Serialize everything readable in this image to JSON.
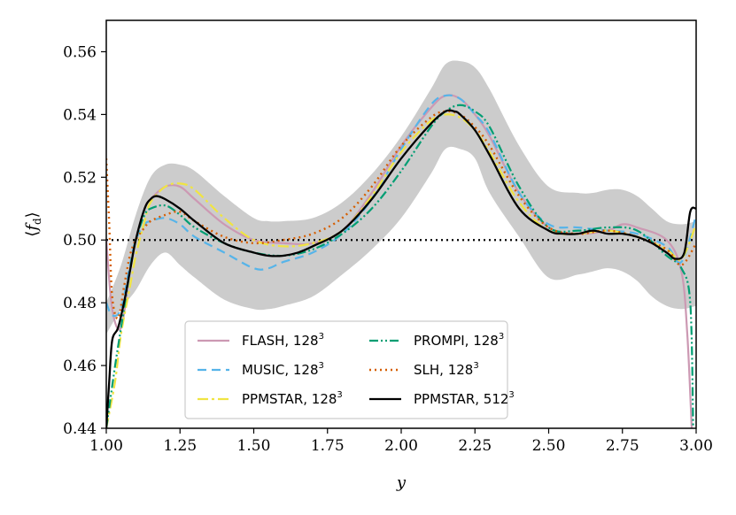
{
  "chart_data": {
    "type": "line",
    "xlabel": "y",
    "ylabel": "⟨f_d⟩",
    "ylabel_main": "⟨f",
    "ylabel_sub": "d",
    "ylabel_close": "⟩",
    "xlim": [
      1.0,
      3.0
    ],
    "ylim": [
      0.44,
      0.57
    ],
    "xticks": [
      1.0,
      1.25,
      1.5,
      1.75,
      2.0,
      2.25,
      2.5,
      2.75,
      3.0
    ],
    "xtick_labels": [
      "1.00",
      "1.25",
      "1.50",
      "1.75",
      "2.00",
      "2.25",
      "2.50",
      "2.75",
      "3.00"
    ],
    "yticks": [
      0.44,
      0.46,
      0.48,
      0.5,
      0.52,
      0.54,
      0.56
    ],
    "ytick_labels": [
      "0.44",
      "0.46",
      "0.48",
      "0.50",
      "0.52",
      "0.54",
      "0.56"
    ],
    "reference_line": {
      "y": 0.5,
      "style": "dotted",
      "color": "#000000"
    },
    "band": {
      "name": "spread",
      "color": "#cccccc",
      "x": [
        1.0,
        1.05,
        1.1,
        1.15,
        1.2,
        1.25,
        1.3,
        1.4,
        1.5,
        1.55,
        1.6,
        1.7,
        1.8,
        1.9,
        2.0,
        2.1,
        2.15,
        2.2,
        2.25,
        2.3,
        2.4,
        2.5,
        2.6,
        2.65,
        2.7,
        2.75,
        2.8,
        2.85,
        2.9,
        2.95,
        3.0
      ],
      "upper": [
        0.48,
        0.492,
        0.508,
        0.52,
        0.524,
        0.524,
        0.522,
        0.514,
        0.507,
        0.506,
        0.506,
        0.507,
        0.512,
        0.521,
        0.533,
        0.548,
        0.556,
        0.557,
        0.555,
        0.548,
        0.53,
        0.517,
        0.515,
        0.515,
        0.516,
        0.516,
        0.514,
        0.51,
        0.506,
        0.505,
        0.506
      ],
      "lower": [
        0.47,
        0.478,
        0.484,
        0.492,
        0.496,
        0.492,
        0.488,
        0.481,
        0.478,
        0.478,
        0.479,
        0.482,
        0.489,
        0.497,
        0.507,
        0.521,
        0.529,
        0.529,
        0.526,
        0.515,
        0.501,
        0.488,
        0.489,
        0.49,
        0.491,
        0.49,
        0.487,
        0.482,
        0.479,
        0.478,
        0.479
      ]
    },
    "series": [
      {
        "name": "FLASH",
        "res": "128",
        "color": "#cc99b3",
        "dash": "",
        "width": 2.2,
        "x": [
          1.0,
          1.02,
          1.05,
          1.08,
          1.1,
          1.13,
          1.15,
          1.2,
          1.25,
          1.3,
          1.4,
          1.5,
          1.6,
          1.7,
          1.8,
          1.9,
          2.0,
          2.1,
          2.15,
          2.2,
          2.25,
          2.3,
          2.4,
          2.5,
          2.6,
          2.7,
          2.75,
          2.8,
          2.9,
          2.95,
          2.97,
          2.985
        ],
        "y": [
          0.5,
          0.478,
          0.472,
          0.49,
          0.5,
          0.51,
          0.513,
          0.517,
          0.517,
          0.513,
          0.505,
          0.5,
          0.499,
          0.499,
          0.503,
          0.515,
          0.53,
          0.542,
          0.546,
          0.545,
          0.54,
          0.533,
          0.515,
          0.504,
          0.502,
          0.503,
          0.505,
          0.504,
          0.5,
          0.49,
          0.47,
          0.44
        ]
      },
      {
        "name": "MUSIC",
        "res": "128",
        "color": "#56b4e9",
        "dash": "10,6",
        "width": 2.2,
        "x": [
          1.0,
          1.02,
          1.05,
          1.08,
          1.1,
          1.13,
          1.15,
          1.2,
          1.25,
          1.3,
          1.4,
          1.5,
          1.55,
          1.6,
          1.7,
          1.8,
          1.9,
          2.0,
          2.1,
          2.15,
          2.2,
          2.25,
          2.3,
          2.4,
          2.5,
          2.6,
          2.7,
          2.8,
          2.9,
          2.95,
          3.0
        ],
        "y": [
          0.48,
          0.476,
          0.478,
          0.492,
          0.5,
          0.505,
          0.506,
          0.507,
          0.505,
          0.501,
          0.496,
          0.491,
          0.491,
          0.493,
          0.496,
          0.502,
          0.513,
          0.529,
          0.543,
          0.546,
          0.545,
          0.54,
          0.534,
          0.515,
          0.505,
          0.504,
          0.503,
          0.502,
          0.498,
          0.493,
          0.508
        ]
      },
      {
        "name": "PPMSTAR",
        "res": "128",
        "color": "#f0e442",
        "dash": "12,4,3,4",
        "width": 2.2,
        "x": [
          1.0,
          1.03,
          1.05,
          1.08,
          1.1,
          1.13,
          1.15,
          1.2,
          1.25,
          1.3,
          1.4,
          1.5,
          1.6,
          1.7,
          1.8,
          1.9,
          2.0,
          2.1,
          2.15,
          2.2,
          2.25,
          2.3,
          2.4,
          2.5,
          2.6,
          2.7,
          2.8,
          2.9,
          2.95,
          3.0
        ],
        "y": [
          0.44,
          0.455,
          0.47,
          0.485,
          0.495,
          0.506,
          0.512,
          0.517,
          0.518,
          0.516,
          0.507,
          0.5,
          0.498,
          0.499,
          0.503,
          0.514,
          0.528,
          0.538,
          0.54,
          0.539,
          0.535,
          0.528,
          0.512,
          0.503,
          0.502,
          0.503,
          0.501,
          0.497,
          0.494,
          0.505
        ]
      },
      {
        "name": "PROMPI",
        "res": "128",
        "color": "#009e73",
        "dash": "10,3,2,3,2,3",
        "width": 2.2,
        "x": [
          1.0,
          1.03,
          1.05,
          1.08,
          1.1,
          1.13,
          1.15,
          1.2,
          1.25,
          1.3,
          1.4,
          1.5,
          1.6,
          1.7,
          1.8,
          1.9,
          2.0,
          2.1,
          2.15,
          2.2,
          2.25,
          2.3,
          2.4,
          2.5,
          2.6,
          2.7,
          2.8,
          2.9,
          2.95,
          2.98,
          2.99
        ],
        "y": [
          0.44,
          0.46,
          0.472,
          0.49,
          0.5,
          0.508,
          0.51,
          0.511,
          0.508,
          0.504,
          0.499,
          0.496,
          0.495,
          0.497,
          0.502,
          0.51,
          0.522,
          0.536,
          0.541,
          0.543,
          0.541,
          0.536,
          0.517,
          0.504,
          0.503,
          0.504,
          0.503,
          0.495,
          0.491,
          0.48,
          0.44
        ]
      },
      {
        "name": "SLH",
        "res": "128",
        "color": "#d55e00",
        "dash": "2,4",
        "width": 2.4,
        "x": [
          1.0,
          1.01,
          1.02,
          1.04,
          1.06,
          1.08,
          1.1,
          1.13,
          1.15,
          1.2,
          1.25,
          1.3,
          1.4,
          1.5,
          1.6,
          1.7,
          1.8,
          1.9,
          2.0,
          2.1,
          2.15,
          2.2,
          2.25,
          2.3,
          2.4,
          2.5,
          2.6,
          2.7,
          2.8,
          2.9,
          2.95,
          3.0
        ],
        "y": [
          0.526,
          0.505,
          0.482,
          0.475,
          0.485,
          0.495,
          0.5,
          0.504,
          0.506,
          0.508,
          0.509,
          0.506,
          0.501,
          0.499,
          0.5,
          0.502,
          0.507,
          0.517,
          0.53,
          0.539,
          0.541,
          0.54,
          0.536,
          0.53,
          0.514,
          0.504,
          0.502,
          0.503,
          0.501,
          0.497,
          0.492,
          0.499
        ]
      },
      {
        "name": "PPMSTAR",
        "res": "512",
        "color": "#000000",
        "dash": "",
        "width": 2.3,
        "x": [
          1.0,
          1.01,
          1.02,
          1.04,
          1.06,
          1.08,
          1.1,
          1.13,
          1.15,
          1.17,
          1.2,
          1.25,
          1.3,
          1.4,
          1.5,
          1.55,
          1.6,
          1.65,
          1.7,
          1.8,
          1.9,
          2.0,
          2.1,
          2.15,
          2.18,
          2.2,
          2.25,
          2.3,
          2.4,
          2.5,
          2.55,
          2.6,
          2.65,
          2.7,
          2.75,
          2.8,
          2.85,
          2.9,
          2.93,
          2.96,
          2.98,
          3.0
        ],
        "y": [
          0.44,
          0.455,
          0.468,
          0.472,
          0.48,
          0.49,
          0.5,
          0.51,
          0.513,
          0.514,
          0.513,
          0.51,
          0.506,
          0.499,
          0.496,
          0.495,
          0.495,
          0.496,
          0.498,
          0.503,
          0.513,
          0.526,
          0.537,
          0.541,
          0.541,
          0.54,
          0.535,
          0.527,
          0.51,
          0.503,
          0.502,
          0.502,
          0.503,
          0.502,
          0.502,
          0.501,
          0.499,
          0.496,
          0.494,
          0.496,
          0.509,
          0.51
        ]
      }
    ],
    "legend": {
      "placement": "lower-center",
      "entries": [
        {
          "label": "FLASH, 128",
          "sup": "3",
          "series": 0
        },
        {
          "label": "PROMPI, 128",
          "sup": "3",
          "series": 3
        },
        {
          "label": "MUSIC, 128",
          "sup": "3",
          "series": 1
        },
        {
          "label": "SLH, 128",
          "sup": "3",
          "series": 4
        },
        {
          "label": "PPMSTAR, 128",
          "sup": "3",
          "series": 2
        },
        {
          "label": "PPMSTAR, 512",
          "sup": "3",
          "series": 5
        }
      ]
    }
  }
}
